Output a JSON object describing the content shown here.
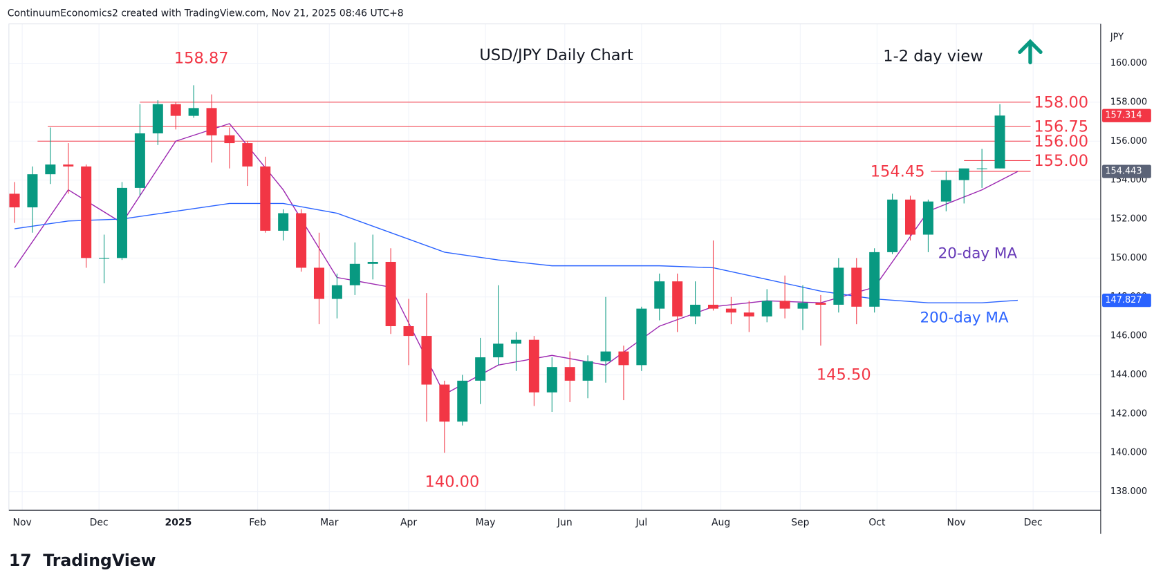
{
  "header": "ContinuumEconomics2 created with TradingView.com, Nov 21, 2025 08:46 UTC+8",
  "logo": "TradingView",
  "chart_data": {
    "type": "candlestick",
    "title": "USD/JPY Daily Chart",
    "subtitle": "1-2 day view",
    "currency": "JPY",
    "up_color": "#089981",
    "down_color": "#f23645",
    "grid": true,
    "xlim": [
      -5.2,
      421.4
    ],
    "xticks": [
      {
        "value": 0,
        "label": "Nov"
      },
      {
        "value": 30,
        "label": "Dec"
      },
      {
        "value": 61,
        "label": "2025"
      },
      {
        "value": 92,
        "label": "Feb"
      },
      {
        "value": 120,
        "label": "Mar"
      },
      {
        "value": 151,
        "label": "Apr"
      },
      {
        "value": 181,
        "label": "May"
      },
      {
        "value": 212,
        "label": "Jun"
      },
      {
        "value": 242,
        "label": "Jul"
      },
      {
        "value": 273,
        "label": "Aug"
      },
      {
        "value": 304,
        "label": "Sep"
      },
      {
        "value": 334,
        "label": "Oct"
      },
      {
        "value": 365,
        "label": "Nov"
      },
      {
        "value": 395,
        "label": "Dec"
      }
    ],
    "ylim": [
      137.05,
      162.02
    ],
    "yticks": [
      {
        "value": 138,
        "label": "138.000"
      },
      {
        "value": 140,
        "label": "140.000"
      },
      {
        "value": 142,
        "label": "142.000"
      },
      {
        "value": 144,
        "label": "144.000"
      },
      {
        "value": 146,
        "label": "146.000"
      },
      {
        "value": 148,
        "label": "148.000"
      },
      {
        "value": 150,
        "label": "150.000"
      },
      {
        "value": 152,
        "label": "152.000"
      },
      {
        "value": 154,
        "label": "154.000"
      },
      {
        "value": 156,
        "label": "156.000"
      },
      {
        "value": 158,
        "label": "158.000"
      },
      {
        "value": 160,
        "label": "160.000"
      }
    ],
    "x": [
      -3,
      4,
      11,
      18,
      25,
      32,
      39,
      46,
      53,
      60,
      67,
      74,
      81,
      88,
      95,
      102,
      109,
      116,
      123,
      130,
      137,
      144,
      151,
      158,
      165,
      172,
      179,
      186,
      193,
      200,
      207,
      214,
      221,
      228,
      235,
      242,
      249,
      256,
      263,
      270,
      277,
      284,
      291,
      298,
      305,
      312,
      319,
      326,
      333,
      340,
      347,
      354,
      361,
      368,
      375,
      382
    ],
    "open": [
      153.3,
      152.6,
      154.3,
      154.8,
      154.7,
      150.0,
      150.0,
      153.6,
      156.4,
      157.9,
      157.3,
      157.7,
      156.3,
      155.9,
      154.7,
      151.4,
      152.3,
      149.5,
      147.9,
      148.6,
      149.7,
      149.8,
      146.5,
      146.0,
      143.5,
      141.6,
      143.7,
      144.9,
      145.6,
      145.8,
      143.1,
      144.4,
      143.7,
      144.7,
      145.2,
      144.5,
      147.4,
      148.8,
      147.0,
      147.6,
      147.4,
      147.2,
      147.0,
      147.8,
      147.4,
      147.7,
      147.6,
      149.5,
      147.5,
      150.3,
      153.0,
      151.2,
      152.9,
      154.0,
      154.6,
      154.6
    ],
    "high": [
      153.9,
      154.7,
      156.7,
      155.9,
      154.8,
      151.2,
      153.9,
      157.9,
      158.1,
      158.0,
      158.87,
      158.4,
      156.7,
      156.0,
      155.2,
      152.5,
      152.5,
      151.3,
      149.2,
      150.8,
      151.2,
      150.5,
      147.9,
      148.2,
      143.7,
      144.0,
      145.9,
      148.6,
      146.2,
      146.0,
      144.9,
      145.2,
      145.0,
      148.0,
      145.5,
      147.5,
      149.2,
      149.2,
      148.8,
      150.9,
      148.0,
      147.8,
      148.4,
      149.1,
      148.6,
      148.1,
      150.0,
      150.0,
      150.5,
      153.3,
      153.2,
      153.0,
      154.45,
      154.5,
      155.6,
      157.9
    ],
    "low": [
      151.8,
      151.3,
      153.8,
      153.3,
      149.5,
      148.7,
      149.9,
      153.2,
      155.8,
      156.6,
      157.2,
      154.9,
      154.6,
      153.7,
      151.3,
      150.9,
      149.3,
      146.6,
      146.9,
      148.1,
      148.9,
      146.1,
      144.5,
      141.6,
      140.0,
      141.4,
      142.5,
      144.5,
      144.2,
      142.4,
      142.1,
      142.6,
      142.8,
      143.6,
      142.7,
      144.2,
      146.8,
      146.2,
      146.6,
      147.3,
      146.6,
      146.2,
      146.7,
      146.9,
      146.3,
      145.5,
      147.2,
      146.6,
      147.2,
      150.2,
      150.9,
      150.3,
      152.4,
      152.8,
      153.6,
      154.6
    ],
    "close": [
      152.6,
      154.3,
      154.8,
      154.7,
      150.0,
      150.0,
      153.6,
      156.4,
      157.9,
      157.3,
      157.7,
      156.3,
      155.9,
      154.7,
      151.4,
      152.3,
      149.5,
      147.9,
      148.6,
      149.7,
      149.8,
      146.5,
      146.0,
      143.5,
      141.6,
      143.7,
      144.9,
      145.6,
      145.8,
      143.1,
      144.4,
      143.7,
      144.7,
      145.2,
      144.5,
      147.4,
      148.8,
      147.0,
      147.6,
      147.4,
      147.2,
      147.0,
      147.8,
      147.4,
      147.7,
      147.6,
      149.5,
      147.5,
      150.3,
      153.0,
      151.2,
      152.9,
      154.0,
      154.6,
      154.6,
      157.314
    ],
    "series": [
      {
        "name": "20-day MA",
        "color": "#9c27b0",
        "label_color": "#673ab7",
        "value_label": 154.443,
        "x": [
          -3,
          18,
          39,
          60,
          81,
          102,
          123,
          144,
          165,
          186,
          207,
          228,
          249,
          270,
          291,
          312,
          333,
          354,
          375,
          389
        ],
        "values": [
          149.5,
          153.5,
          151.8,
          156.0,
          156.9,
          153.5,
          149.0,
          148.5,
          143.0,
          144.5,
          145.0,
          144.5,
          146.5,
          147.5,
          147.8,
          147.7,
          148.5,
          152.4,
          153.5,
          154.443
        ]
      },
      {
        "name": "200-day MA",
        "color": "#2962ff",
        "label_color": "#2962ff",
        "value_label": 147.827,
        "x": [
          -3,
          18,
          39,
          60,
          81,
          102,
          123,
          144,
          165,
          186,
          207,
          228,
          249,
          270,
          291,
          312,
          333,
          354,
          375,
          389
        ],
        "values": [
          151.5,
          151.9,
          152.0,
          152.4,
          152.8,
          152.8,
          152.3,
          151.3,
          150.3,
          149.9,
          149.6,
          149.6,
          149.6,
          149.5,
          148.9,
          148.3,
          147.9,
          147.7,
          147.7,
          147.827
        ]
      }
    ],
    "levels": [
      {
        "value": 158.0,
        "label": "158.00",
        "x_start": 46
      },
      {
        "value": 156.75,
        "label": "156.75",
        "x_start": 10
      },
      {
        "value": 156.0,
        "label": "156.00",
        "x_start": 6
      },
      {
        "value": 155.0,
        "label": "155.00",
        "x_start": 368
      },
      {
        "value": 154.45,
        "label": "154.45",
        "x_start": 355
      }
    ],
    "annotations": [
      {
        "label": "158.87",
        "value": 158.87,
        "x": 70
      },
      {
        "label": "145.50",
        "value": 145.5,
        "x": 321
      },
      {
        "label": "140.00",
        "value": 140.0,
        "x": 168
      }
    ],
    "last_price": 157.314
  }
}
